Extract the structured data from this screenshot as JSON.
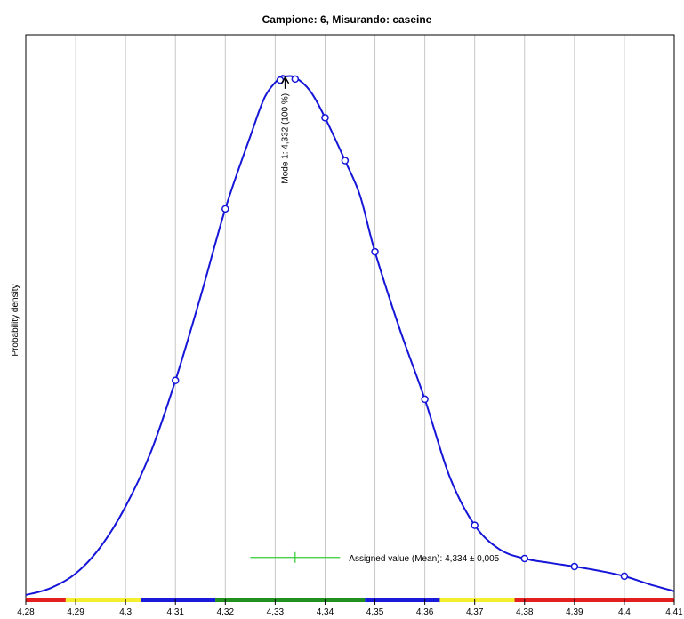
{
  "chart_data": {
    "type": "line",
    "title": "Campione: 6, Misurando: caseine",
    "xlabel": "",
    "ylabel": "Probability density",
    "xlim": [
      4.28,
      4.41
    ],
    "ylim": [
      0,
      1.0
    ],
    "x_ticks": [
      4.28,
      4.29,
      4.3,
      4.31,
      4.32,
      4.33,
      4.34,
      4.35,
      4.36,
      4.37,
      4.38,
      4.39,
      4.4,
      4.41
    ],
    "x_tick_labels": [
      "4,28",
      "4,29",
      "4,3",
      "4,31",
      "4,32",
      "4,33",
      "4,34",
      "4,35",
      "4,36",
      "4,37",
      "4,38",
      "4,39",
      "4,4",
      "4,41"
    ],
    "grid": "vertical",
    "series": [
      {
        "color": "#1515d8",
        "curve": [
          [
            4.28,
            0.005
          ],
          [
            4.285,
            0.018
          ],
          [
            4.29,
            0.045
          ],
          [
            4.295,
            0.095
          ],
          [
            4.3,
            0.17
          ],
          [
            4.305,
            0.27
          ],
          [
            4.31,
            0.405
          ],
          [
            4.315,
            0.56
          ],
          [
            4.32,
            0.725
          ],
          [
            4.325,
            0.86
          ],
          [
            4.328,
            0.935
          ],
          [
            4.331,
            0.97
          ],
          [
            4.332,
            0.972
          ],
          [
            4.334,
            0.97
          ],
          [
            4.337,
            0.945
          ],
          [
            4.34,
            0.895
          ],
          [
            4.344,
            0.815
          ],
          [
            4.347,
            0.75
          ],
          [
            4.35,
            0.645
          ],
          [
            4.355,
            0.5
          ],
          [
            4.36,
            0.37
          ],
          [
            4.365,
            0.225
          ],
          [
            4.37,
            0.135
          ],
          [
            4.375,
            0.09
          ],
          [
            4.38,
            0.073
          ],
          [
            4.385,
            0.065
          ],
          [
            4.39,
            0.058
          ],
          [
            4.395,
            0.05
          ],
          [
            4.4,
            0.04
          ],
          [
            4.405,
            0.025
          ],
          [
            4.41,
            0.012
          ]
        ],
        "points": [
          [
            4.31,
            0.405
          ],
          [
            4.32,
            0.725
          ],
          [
            4.331,
            0.965
          ],
          [
            4.334,
            0.967
          ],
          [
            4.34,
            0.895
          ],
          [
            4.344,
            0.815
          ],
          [
            4.35,
            0.645
          ],
          [
            4.36,
            0.37
          ],
          [
            4.37,
            0.135
          ],
          [
            4.38,
            0.073
          ],
          [
            4.39,
            0.058
          ],
          [
            4.4,
            0.04
          ]
        ]
      }
    ],
    "annotations": [
      {
        "label": "Mode 1: 4,332  (100 %)",
        "x": 4.332,
        "y": 0.972
      }
    ],
    "assigned_value": {
      "label": "Assigned value (Mean): 4,334 ± 0,005",
      "value": 4.334,
      "uncertainty": 0.005,
      "interval_low": 4.325,
      "interval_high": 4.343,
      "y": 0.075,
      "color": "#33cc33"
    },
    "bottom_bands": [
      {
        "from": 4.28,
        "to": 4.288,
        "color": "#e41e1e"
      },
      {
        "from": 4.288,
        "to": 4.303,
        "color": "#f4ee2c"
      },
      {
        "from": 4.303,
        "to": 4.318,
        "color": "#1a1adc"
      },
      {
        "from": 4.318,
        "to": 4.348,
        "color": "#1f8f1f"
      },
      {
        "from": 4.348,
        "to": 4.363,
        "color": "#1a1adc"
      },
      {
        "from": 4.363,
        "to": 4.378,
        "color": "#f4ee2c"
      },
      {
        "from": 4.378,
        "to": 4.41,
        "color": "#e41e1e"
      }
    ]
  }
}
